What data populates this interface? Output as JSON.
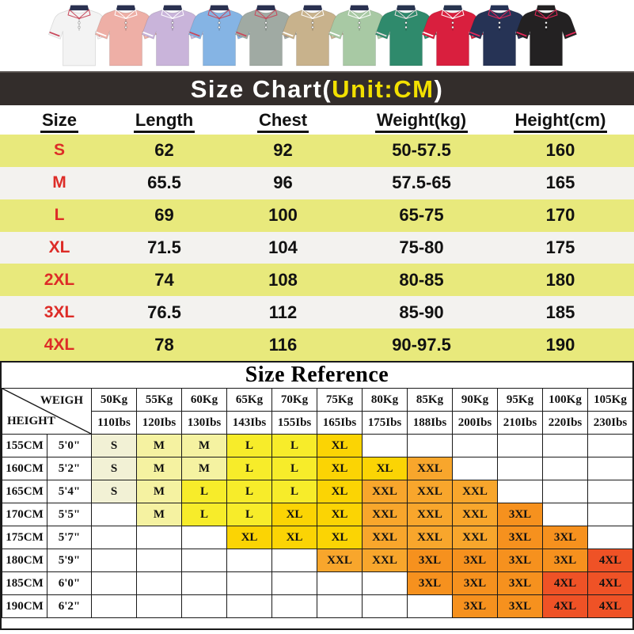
{
  "shirts": {
    "items": [
      {
        "name": "white",
        "body": "#f3f3f3",
        "collar": "#2a3150",
        "trim": "#c9485b"
      },
      {
        "name": "pink",
        "body": "#eeafa6",
        "collar": "#2a3150",
        "trim": "#ffffff"
      },
      {
        "name": "lavender",
        "body": "#c9b4da",
        "collar": "#2a3150",
        "trim": "#ffffff"
      },
      {
        "name": "blue",
        "body": "#85b4e4",
        "collar": "#2a3150",
        "trim": "#c9485b"
      },
      {
        "name": "sage",
        "body": "#a0aaa3",
        "collar": "#2a3150",
        "trim": "#c9485b"
      },
      {
        "name": "khaki",
        "body": "#c8b28c",
        "collar": "#2a3150",
        "trim": "#ffffff"
      },
      {
        "name": "mint",
        "body": "#a8c9a4",
        "collar": "#2a3150",
        "trim": "#ffffff"
      },
      {
        "name": "teal",
        "body": "#2f8a6c",
        "collar": "#28344f",
        "trim": "#e8dede"
      },
      {
        "name": "red",
        "body": "#d91f3e",
        "collar": "#28344f",
        "trim": "#ffffff"
      },
      {
        "name": "navy",
        "body": "#263355",
        "collar": "#263355",
        "trim": "#e8275a"
      },
      {
        "name": "black",
        "body": "#232122",
        "collar": "#232122",
        "trim": "#e8275a"
      }
    ]
  },
  "size_chart": {
    "title": {
      "prefix": "Size Chart(",
      "unit": "Unit:CM",
      "suffix": ")"
    },
    "headers": [
      "Size",
      "Length",
      "Chest",
      "Weight(kg)",
      "Height(cm)"
    ],
    "rows": [
      {
        "size": "S",
        "length": "62",
        "chest": "92",
        "weight": "50-57.5",
        "height": "160"
      },
      {
        "size": "M",
        "length": "65.5",
        "chest": "96",
        "weight": "57.5-65",
        "height": "165"
      },
      {
        "size": "L",
        "length": "69",
        "chest": "100",
        "weight": "65-75",
        "height": "170"
      },
      {
        "size": "XL",
        "length": "71.5",
        "chest": "104",
        "weight": "75-80",
        "height": "175"
      },
      {
        "size": "2XL",
        "length": "74",
        "chest": "108",
        "weight": "80-85",
        "height": "180"
      },
      {
        "size": "3XL",
        "length": "76.5",
        "chest": "112",
        "weight": "85-90",
        "height": "185"
      },
      {
        "size": "4XL",
        "length": "78",
        "chest": "116",
        "weight": "90-97.5",
        "height": "190"
      }
    ]
  },
  "reference": {
    "title": "Size Reference",
    "corner": {
      "top": "WEIGH",
      "bottom": "HEIGHT"
    },
    "weights_kg": [
      "50Kg",
      "55Kg",
      "60Kg",
      "65Kg",
      "70Kg",
      "75Kg",
      "80Kg",
      "85Kg",
      "90Kg",
      "95Kg",
      "100Kg",
      "105Kg"
    ],
    "weights_lbs": [
      "110Ibs",
      "120Ibs",
      "130Ibs",
      "143Ibs",
      "155Ibs",
      "165Ibs",
      "175Ibs",
      "188Ibs",
      "200Ibs",
      "210Ibs",
      "220Ibs",
      "230Ibs"
    ],
    "rows": [
      {
        "cm": "155CM",
        "ft": "5'0\"",
        "cells": [
          "S",
          "M",
          "M",
          "L",
          "L",
          "XL",
          "",
          "",
          "",
          "",
          "",
          ""
        ]
      },
      {
        "cm": "160CM",
        "ft": "5'2\"",
        "cells": [
          "S",
          "M",
          "M",
          "L",
          "L",
          "XL",
          "XL",
          "XXL",
          "",
          "",
          "",
          ""
        ]
      },
      {
        "cm": "165CM",
        "ft": "5'4\"",
        "cells": [
          "S",
          "M",
          "L",
          "L",
          "L",
          "XL",
          "XXL",
          "XXL",
          "XXL",
          "",
          "",
          ""
        ]
      },
      {
        "cm": "170CM",
        "ft": "5'5\"",
        "cells": [
          "",
          "M",
          "L",
          "L",
          "XL",
          "XL",
          "XXL",
          "XXL",
          "XXL",
          "3XL",
          "",
          ""
        ]
      },
      {
        "cm": "175CM",
        "ft": "5'7\"",
        "cells": [
          "",
          "",
          "",
          "XL",
          "XL",
          "XL",
          "XXL",
          "XXL",
          "XXL",
          "3XL",
          "3XL",
          ""
        ]
      },
      {
        "cm": "180CM",
        "ft": "5'9\"",
        "cells": [
          "",
          "",
          "",
          "",
          "",
          "XXL",
          "XXL",
          "3XL",
          "3XL",
          "3XL",
          "3XL",
          "4XL"
        ]
      },
      {
        "cm": "185CM",
        "ft": "6'0\"",
        "cells": [
          "",
          "",
          "",
          "",
          "",
          "",
          "",
          "3XL",
          "3XL",
          "3XL",
          "4XL",
          "4XL"
        ]
      },
      {
        "cm": "190CM",
        "ft": "6'2\"",
        "cells": [
          "",
          "",
          "",
          "",
          "",
          "",
          "",
          "",
          "3XL",
          "3XL",
          "4XL",
          "4XL"
        ]
      }
    ]
  },
  "colors": {
    "banner_bg": "#332d2b",
    "banner_text": "#ffffff",
    "banner_unit": "#f2e000",
    "row_yellow": "#e8e97c",
    "row_white": "#f3f2ef",
    "size_label_red": "#dd2c27",
    "grid_line": "#1a1a1a",
    "size_colors": {
      "S": "#f2f1d5",
      "M": "#f5f2a1",
      "L": "#f7ec2a",
      "XL": "#fbd404",
      "XXL": "#f8a62c",
      "3XL": "#f6911e",
      "4XL": "#ef5226"
    }
  }
}
